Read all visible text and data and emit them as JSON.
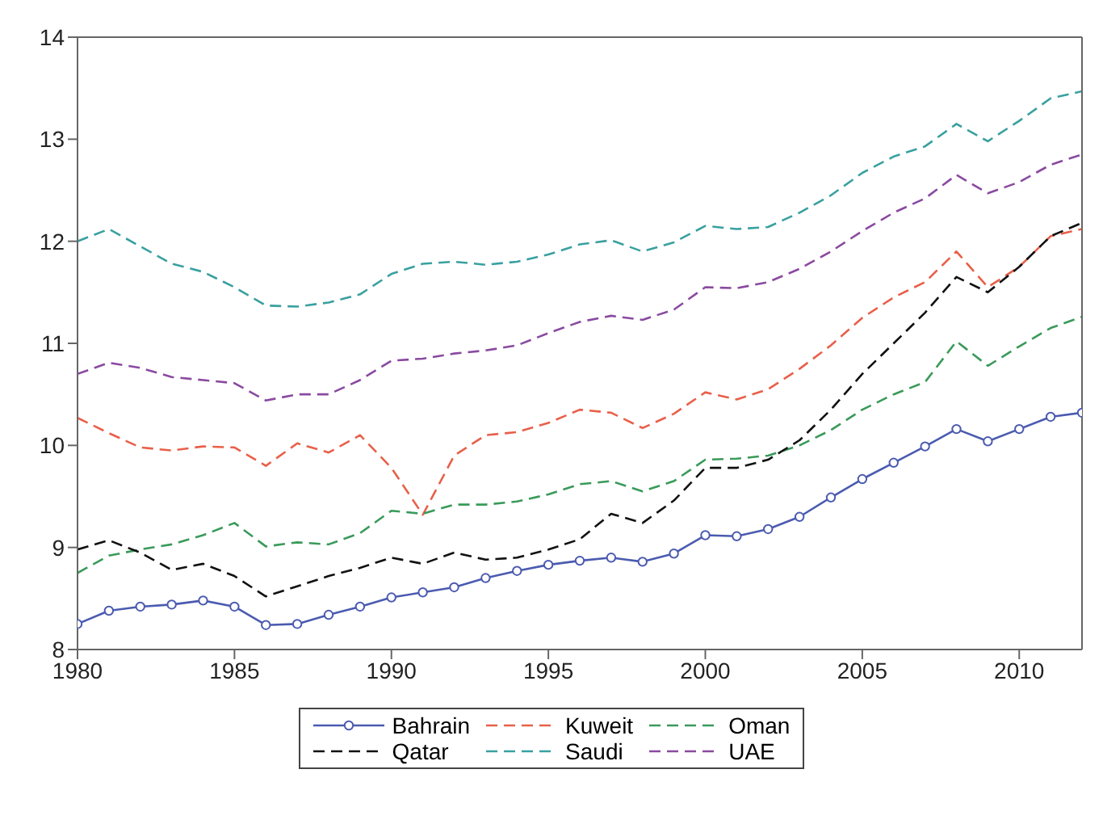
{
  "chart_data": {
    "type": "line",
    "x": [
      1980,
      1981,
      1982,
      1983,
      1984,
      1985,
      1986,
      1987,
      1988,
      1989,
      1990,
      1991,
      1992,
      1993,
      1994,
      1995,
      1996,
      1997,
      1998,
      1999,
      2000,
      2001,
      2002,
      2003,
      2004,
      2005,
      2006,
      2007,
      2008,
      2009,
      2010,
      2011,
      2012
    ],
    "xlim": [
      1980,
      2012
    ],
    "xticks": [
      1980,
      1985,
      1990,
      1995,
      2000,
      2005,
      2010
    ],
    "ylim": [
      8,
      14
    ],
    "yticks": [
      8,
      9,
      10,
      11,
      12,
      13,
      14
    ],
    "grid": false,
    "legend": "bottom",
    "series": [
      {
        "name": "Bahrain",
        "color": "#4b5bb0",
        "marker": "circle",
        "line_style": "solid",
        "values": [
          8.25,
          8.38,
          8.42,
          8.44,
          8.48,
          8.42,
          8.24,
          8.25,
          8.34,
          8.42,
          8.51,
          8.56,
          8.61,
          8.7,
          8.77,
          8.83,
          8.87,
          8.9,
          8.86,
          8.94,
          9.12,
          9.11,
          9.18,
          9.3,
          9.49,
          9.67,
          9.83,
          9.99,
          10.16,
          10.04,
          10.16,
          10.28,
          10.32
        ]
      },
      {
        "name": "Kuweit",
        "color": "#e8604a",
        "marker": "none",
        "line_style": "dashed",
        "values": [
          10.27,
          10.12,
          9.98,
          9.95,
          9.99,
          9.98,
          9.8,
          10.02,
          9.93,
          10.1,
          9.78,
          9.32,
          9.9,
          10.1,
          10.13,
          10.22,
          10.35,
          10.32,
          10.17,
          10.31,
          10.52,
          10.45,
          10.55,
          10.75,
          10.98,
          11.25,
          11.45,
          11.6,
          11.9,
          11.55,
          11.75,
          12.05,
          12.12
        ]
      },
      {
        "name": "Oman",
        "color": "#3a9a5a",
        "marker": "none",
        "line_style": "dashed",
        "values": [
          8.75,
          8.92,
          8.98,
          9.03,
          9.12,
          9.24,
          9.01,
          9.05,
          9.03,
          9.14,
          9.36,
          9.33,
          9.42,
          9.42,
          9.45,
          9.52,
          9.62,
          9.65,
          9.55,
          9.65,
          9.86,
          9.87,
          9.9,
          10.0,
          10.15,
          10.35,
          10.5,
          10.62,
          11.02,
          10.78,
          10.97,
          11.15,
          11.26
        ]
      },
      {
        "name": "Qatar",
        "color": "#111111",
        "marker": "none",
        "line_style": "dashed",
        "values": [
          8.98,
          9.07,
          8.95,
          8.78,
          8.84,
          8.72,
          8.52,
          8.62,
          8.72,
          8.8,
          8.9,
          8.84,
          8.95,
          8.88,
          8.9,
          8.98,
          9.08,
          9.33,
          9.24,
          9.46,
          9.78,
          9.78,
          9.86,
          10.05,
          10.35,
          10.7,
          11.0,
          11.3,
          11.65,
          11.5,
          11.75,
          12.05,
          12.18
        ]
      },
      {
        "name": "Saudi",
        "color": "#3aa0a0",
        "marker": "none",
        "line_style": "dashed",
        "values": [
          12.0,
          12.12,
          11.95,
          11.78,
          11.7,
          11.55,
          11.37,
          11.36,
          11.4,
          11.48,
          11.68,
          11.78,
          11.8,
          11.77,
          11.8,
          11.87,
          11.97,
          12.01,
          11.9,
          11.99,
          12.15,
          12.12,
          12.14,
          12.28,
          12.45,
          12.67,
          12.83,
          12.93,
          13.15,
          12.98,
          13.18,
          13.4,
          13.47
        ]
      },
      {
        "name": "UAE",
        "color": "#8a4aa0",
        "marker": "none",
        "line_style": "dashed",
        "values": [
          10.7,
          10.81,
          10.76,
          10.67,
          10.64,
          10.61,
          10.44,
          10.5,
          10.5,
          10.64,
          10.83,
          10.85,
          10.9,
          10.93,
          10.98,
          11.1,
          11.21,
          11.27,
          11.23,
          11.33,
          11.55,
          11.54,
          11.6,
          11.73,
          11.9,
          12.1,
          12.28,
          12.42,
          12.65,
          12.47,
          12.58,
          12.75,
          12.85
        ]
      }
    ]
  }
}
